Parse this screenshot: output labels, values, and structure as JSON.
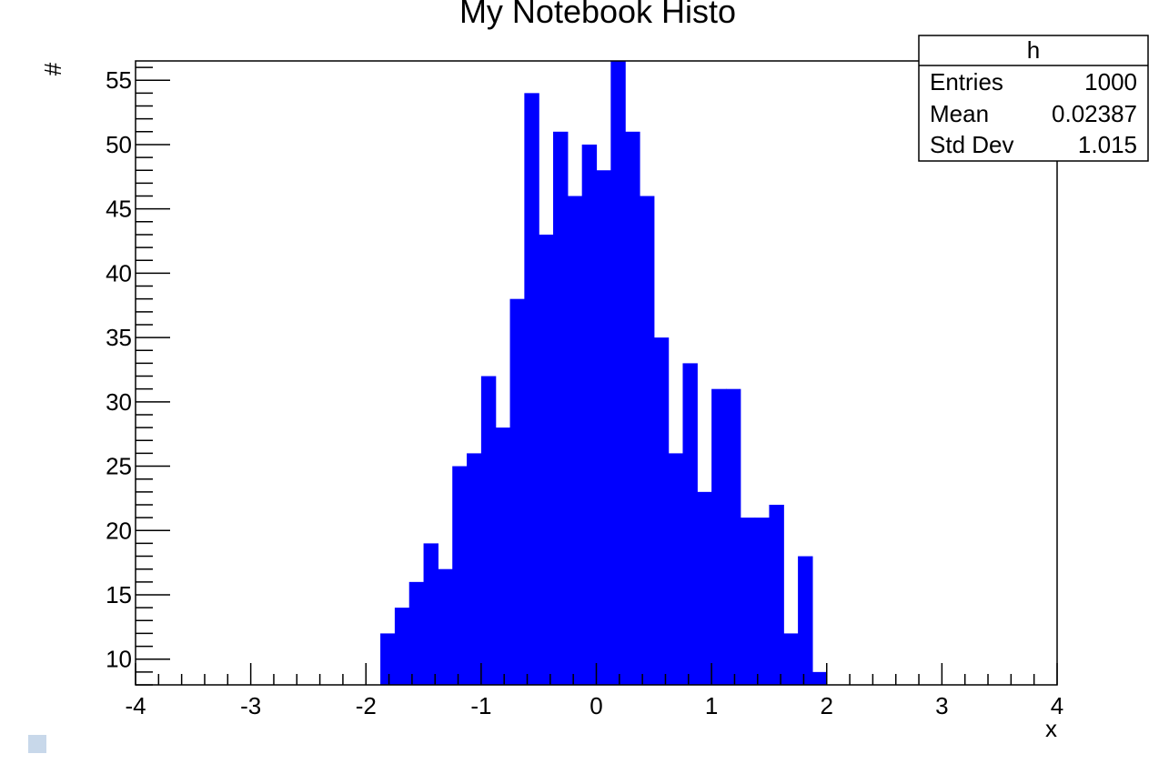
{
  "chart_data": {
    "type": "bar",
    "title": "My Notebook Histo",
    "xlabel": "x",
    "ylabel": "#",
    "xlim": [
      -4,
      4
    ],
    "ylim": [
      8,
      56.5
    ],
    "bin_width": 0.125,
    "x_ticks": [
      -4,
      -3,
      -2,
      -1,
      0,
      1,
      2,
      3,
      4
    ],
    "y_ticks": [
      10,
      15,
      20,
      25,
      30,
      35,
      40,
      45,
      50,
      55
    ],
    "fill_color": "#0000ff",
    "grid": false,
    "bins": [
      {
        "x_low": -1.875,
        "count": 12
      },
      {
        "x_low": -1.75,
        "count": 14
      },
      {
        "x_low": -1.625,
        "count": 16
      },
      {
        "x_low": -1.5,
        "count": 19
      },
      {
        "x_low": -1.375,
        "count": 17
      },
      {
        "x_low": -1.25,
        "count": 25
      },
      {
        "x_low": -1.125,
        "count": 26
      },
      {
        "x_low": -1.0,
        "count": 32
      },
      {
        "x_low": -0.875,
        "count": 28
      },
      {
        "x_low": -0.75,
        "count": 38
      },
      {
        "x_low": -0.625,
        "count": 54
      },
      {
        "x_low": -0.5,
        "count": 43
      },
      {
        "x_low": -0.375,
        "count": 51
      },
      {
        "x_low": -0.25,
        "count": 46
      },
      {
        "x_low": -0.125,
        "count": 50
      },
      {
        "x_low": 0.0,
        "count": 48
      },
      {
        "x_low": 0.125,
        "count": 57
      },
      {
        "x_low": 0.25,
        "count": 51
      },
      {
        "x_low": 0.375,
        "count": 46
      },
      {
        "x_low": 0.5,
        "count": 35
      },
      {
        "x_low": 0.625,
        "count": 26
      },
      {
        "x_low": 0.75,
        "count": 33
      },
      {
        "x_low": 0.875,
        "count": 23
      },
      {
        "x_low": 1.0,
        "count": 31
      },
      {
        "x_low": 1.125,
        "count": 31
      },
      {
        "x_low": 1.25,
        "count": 21
      },
      {
        "x_low": 1.375,
        "count": 21
      },
      {
        "x_low": 1.5,
        "count": 22
      },
      {
        "x_low": 1.625,
        "count": 12
      },
      {
        "x_low": 1.75,
        "count": 18
      },
      {
        "x_low": 1.875,
        "count": 9
      }
    ],
    "stats_box": {
      "name": "h",
      "rows": [
        {
          "label": "Entries",
          "value": "1000"
        },
        {
          "label": "Mean",
          "value": "0.02387"
        },
        {
          "label": "Std Dev",
          "value": "1.015"
        }
      ]
    }
  }
}
